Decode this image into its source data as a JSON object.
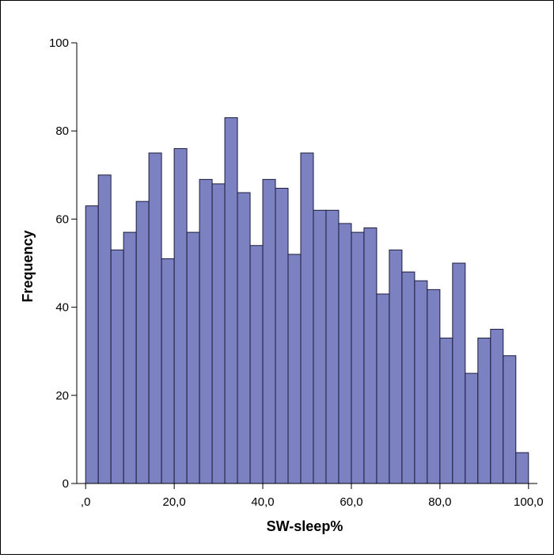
{
  "chart_data": {
    "type": "bar",
    "xlabel": "SW-sleep%",
    "ylabel": "Frequency",
    "xlim": [
      -2,
      102
    ],
    "ylim": [
      0,
      100
    ],
    "bin_width": 2.857,
    "bar_color": "#7b81c1",
    "bar_edge_color": "#1c1c3a",
    "x_ticks": [
      {
        "value": 0,
        "label": ",0"
      },
      {
        "value": 20,
        "label": "20,0"
      },
      {
        "value": 40,
        "label": "40,0"
      },
      {
        "value": 60,
        "label": "60,0"
      },
      {
        "value": 80,
        "label": "80,0"
      },
      {
        "value": 100,
        "label": "100,0"
      }
    ],
    "y_ticks": [
      {
        "value": 0,
        "label": "0"
      },
      {
        "value": 20,
        "label": "20"
      },
      {
        "value": 40,
        "label": "40"
      },
      {
        "value": 60,
        "label": "60"
      },
      {
        "value": 80,
        "label": "80"
      },
      {
        "value": 100,
        "label": "100"
      }
    ],
    "values": [
      63,
      70,
      53,
      57,
      64,
      75,
      51,
      76,
      57,
      69,
      68,
      83,
      66,
      54,
      69,
      67,
      52,
      75,
      62,
      62,
      59,
      57,
      58,
      43,
      53,
      48,
      46,
      44,
      33,
      50,
      25,
      33,
      35,
      29,
      7
    ],
    "grid": false,
    "legend": "none"
  }
}
